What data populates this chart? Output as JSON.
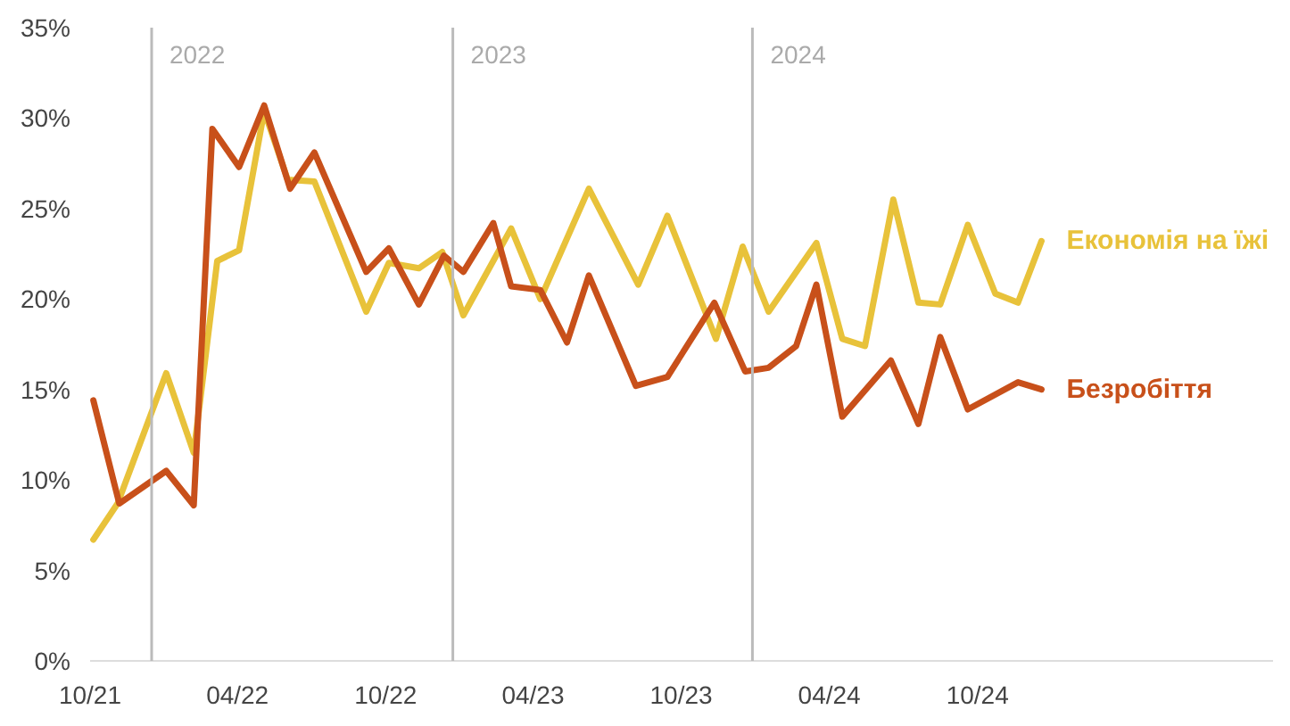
{
  "chart_data": {
    "type": "line",
    "grid": false,
    "marker": "none",
    "line_style": "solid",
    "xlim": [
      "2021-10-01",
      "2025-10-01"
    ],
    "xticks": [
      {
        "value": "2021-10-01",
        "label": "10/21"
      },
      {
        "value": "2022-04-01",
        "label": "04/22"
      },
      {
        "value": "2022-10-01",
        "label": "10/22"
      },
      {
        "value": "2023-04-01",
        "label": "04/23"
      },
      {
        "value": "2023-10-01",
        "label": "10/23"
      },
      {
        "value": "2024-04-01",
        "label": "04/24"
      },
      {
        "value": "2024-10-01",
        "label": "10/24"
      }
    ],
    "ylim": [
      0,
      35
    ],
    "yticks": [
      {
        "value": 0,
        "label": "0%"
      },
      {
        "value": 5,
        "label": "5%"
      },
      {
        "value": 10,
        "label": "10%"
      },
      {
        "value": 15,
        "label": "15%"
      },
      {
        "value": 20,
        "label": "20%"
      },
      {
        "value": 25,
        "label": "25%"
      },
      {
        "value": 30,
        "label": "30%"
      },
      {
        "value": 35,
        "label": "35%"
      }
    ],
    "ref_lines": [
      {
        "axis": "x",
        "value": "2021-12-16",
        "label": "2022",
        "color": "#bbbbbb"
      },
      {
        "axis": "x",
        "value": "2022-12-23",
        "label": "2023",
        "color": "#bbbbbb"
      },
      {
        "axis": "x",
        "value": "2023-12-28",
        "label": "2024",
        "color": "#bbbbbb"
      }
    ],
    "series": [
      {
        "name": "Економія на їжі",
        "color": "#e8c23a",
        "x": [
          "2021-10-05",
          "2021-11-04",
          "2022-01-03",
          "2022-02-06",
          "2022-03-07",
          "2022-04-03",
          "2022-05-04",
          "2022-06-02",
          "2022-07-05",
          "2022-09-07",
          "2022-10-05",
          "2022-11-11",
          "2022-12-10",
          "2023-01-05",
          "2023-03-05",
          "2023-04-10",
          "2023-06-09",
          "2023-08-09",
          "2023-09-14",
          "2023-11-13",
          "2023-12-16",
          "2024-01-17",
          "2024-03-16",
          "2024-04-17",
          "2024-05-15",
          "2024-06-19",
          "2024-07-20",
          "2024-08-16",
          "2024-09-19",
          "2024-10-23",
          "2024-11-20",
          "2024-12-19"
        ],
        "values": [
          6.7,
          8.7,
          15.9,
          11.5,
          22.1,
          22.7,
          30.4,
          26.6,
          26.5,
          19.3,
          22.0,
          21.7,
          22.6,
          19.1,
          23.9,
          20.0,
          26.1,
          20.8,
          24.6,
          17.8,
          22.9,
          19.3,
          23.1,
          17.8,
          17.4,
          25.5,
          19.8,
          19.7,
          24.1,
          20.3,
          19.8,
          23.2
        ]
      },
      {
        "name": "Безробіття",
        "color": "#c8501a",
        "x": [
          "2021-10-05",
          "2021-11-06",
          "2022-01-03",
          "2022-02-06",
          "2022-03-01",
          "2022-04-03",
          "2022-05-04",
          "2022-06-05",
          "2022-07-05",
          "2022-09-07",
          "2022-10-05",
          "2022-11-11",
          "2022-12-12",
          "2023-01-05",
          "2023-02-11",
          "2023-03-05",
          "2023-04-10",
          "2023-05-13",
          "2023-06-09",
          "2023-08-06",
          "2023-09-14",
          "2023-11-11",
          "2023-12-19",
          "2024-01-17",
          "2024-02-20",
          "2024-03-16",
          "2024-04-17",
          "2024-06-16",
          "2024-07-20",
          "2024-08-16",
          "2024-09-19",
          "2024-11-20",
          "2024-12-19"
        ],
        "values": [
          14.4,
          8.7,
          10.5,
          8.6,
          29.4,
          27.3,
          30.7,
          26.1,
          28.1,
          21.5,
          22.8,
          19.7,
          22.4,
          21.5,
          24.2,
          20.7,
          20.5,
          17.6,
          21.3,
          15.2,
          15.7,
          19.8,
          16.0,
          16.2,
          17.4,
          20.8,
          13.5,
          16.6,
          13.1,
          17.9,
          13.9,
          15.4,
          15.0
        ]
      }
    ]
  }
}
